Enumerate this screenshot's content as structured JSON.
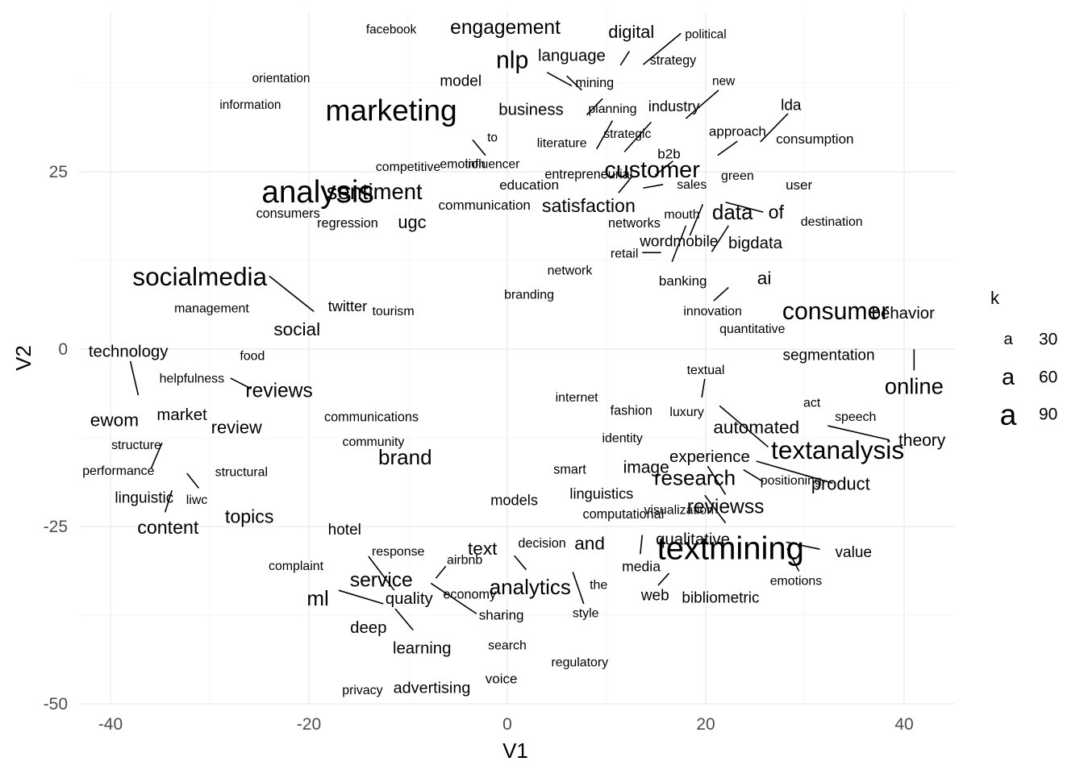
{
  "chart_data": {
    "type": "scatter",
    "title": "",
    "xlabel": "V1",
    "ylabel": "V2",
    "xlim": [
      -43.5,
      45.5
    ],
    "ylim": [
      -50,
      50
    ],
    "x_ticks": [
      -40,
      -20,
      0,
      20,
      40
    ],
    "y_ticks": [
      -50,
      -25,
      0,
      25
    ],
    "grid": true,
    "legend": {
      "title": "k",
      "position": "right",
      "key_glyph": "a",
      "entries": [
        {
          "label": "30",
          "value": 30
        },
        {
          "label": "60",
          "value": 60
        },
        {
          "label": "90",
          "value": 90
        }
      ]
    },
    "words": [
      {
        "label": "facebook",
        "x": -11.7,
        "y": 45.0,
        "k": 12
      },
      {
        "label": "engagement",
        "x": -0.2,
        "y": 45.3,
        "k": 45
      },
      {
        "label": "digital",
        "x": 12.5,
        "y": 44.7,
        "k": 35
      },
      {
        "label": "political",
        "x": 20.0,
        "y": 44.3,
        "k": 12
      },
      {
        "label": "nlp",
        "x": 0.5,
        "y": 40.7,
        "k": 65
      },
      {
        "label": "language",
        "x": 6.5,
        "y": 41.3,
        "k": 30
      },
      {
        "label": "strategy",
        "x": 16.7,
        "y": 40.7,
        "k": 15
      },
      {
        "label": "orientation",
        "x": -22.8,
        "y": 38.1,
        "k": 12
      },
      {
        "label": "model",
        "x": -4.7,
        "y": 37.7,
        "k": 25
      },
      {
        "label": "mining",
        "x": 8.8,
        "y": 37.5,
        "k": 15
      },
      {
        "label": "new",
        "x": 21.8,
        "y": 37.7,
        "k": 12
      },
      {
        "label": "information",
        "x": -25.9,
        "y": 34.4,
        "k": 12
      },
      {
        "label": "marketing",
        "x": -11.7,
        "y": 33.7,
        "k": 90
      },
      {
        "label": "business",
        "x": 2.4,
        "y": 33.7,
        "k": 30
      },
      {
        "label": "planning",
        "x": 10.6,
        "y": 33.8,
        "k": 14
      },
      {
        "label": "industry",
        "x": 16.8,
        "y": 34.2,
        "k": 22
      },
      {
        "label": "lda",
        "x": 28.6,
        "y": 34.3,
        "k": 25
      },
      {
        "label": "to",
        "x": -1.5,
        "y": 29.8,
        "k": 12
      },
      {
        "label": "strategic",
        "x": 12.1,
        "y": 30.3,
        "k": 13
      },
      {
        "label": "literature",
        "x": 5.5,
        "y": 29.0,
        "k": 14
      },
      {
        "label": "approach",
        "x": 23.2,
        "y": 30.7,
        "k": 18
      },
      {
        "label": "consumption",
        "x": 31.0,
        "y": 29.6,
        "k": 18
      },
      {
        "label": "b2b",
        "x": 16.3,
        "y": 27.5,
        "k": 18
      },
      {
        "label": "competitive",
        "x": -10.0,
        "y": 25.6,
        "k": 14
      },
      {
        "label": "emotion",
        "x": -4.5,
        "y": 26.0,
        "k": 14
      },
      {
        "label": "influencer",
        "x": -1.5,
        "y": 26.0,
        "k": 13
      },
      {
        "label": "customer",
        "x": 14.6,
        "y": 25.2,
        "k": 60
      },
      {
        "label": "entrepreneurial",
        "x": 8.2,
        "y": 24.6,
        "k": 15
      },
      {
        "label": "green",
        "x": 23.2,
        "y": 24.4,
        "k": 14
      },
      {
        "label": "education",
        "x": 2.2,
        "y": 23.1,
        "k": 18
      },
      {
        "label": "sales",
        "x": 18.6,
        "y": 23.1,
        "k": 14
      },
      {
        "label": "user",
        "x": 29.4,
        "y": 23.1,
        "k": 18
      },
      {
        "label": "analysis",
        "x": -19.1,
        "y": 22.1,
        "k": 95
      },
      {
        "label": "sentiment",
        "x": -13.4,
        "y": 22.2,
        "k": 55
      },
      {
        "label": "communication",
        "x": -2.3,
        "y": 20.3,
        "k": 18
      },
      {
        "label": "satisfaction",
        "x": 8.2,
        "y": 20.2,
        "k": 40
      },
      {
        "label": "data",
        "x": 22.7,
        "y": 19.3,
        "k": 50
      },
      {
        "label": "of",
        "x": 27.1,
        "y": 19.3,
        "k": 40
      },
      {
        "label": "consumers",
        "x": -22.1,
        "y": 19.1,
        "k": 15
      },
      {
        "label": "mouth",
        "x": 17.6,
        "y": 18.9,
        "k": 14
      },
      {
        "label": "regression",
        "x": -16.1,
        "y": 17.7,
        "k": 15
      },
      {
        "label": "ugc",
        "x": -9.6,
        "y": 17.9,
        "k": 35
      },
      {
        "label": "networks",
        "x": 12.8,
        "y": 17.7,
        "k": 15
      },
      {
        "label": "destination",
        "x": 32.7,
        "y": 17.9,
        "k": 14
      },
      {
        "label": "wordmobile",
        "x": 17.3,
        "y": 15.1,
        "k": 25
      },
      {
        "label": "bigdata",
        "x": 25.0,
        "y": 14.9,
        "k": 30
      },
      {
        "label": "retail",
        "x": 11.8,
        "y": 13.4,
        "k": 14
      },
      {
        "label": "network",
        "x": 6.3,
        "y": 11.0,
        "k": 14
      },
      {
        "label": "socialmedia",
        "x": -31.0,
        "y": 10.2,
        "k": 70
      },
      {
        "label": "banking",
        "x": 17.7,
        "y": 9.6,
        "k": 18
      },
      {
        "label": "ai",
        "x": 25.9,
        "y": 10.0,
        "k": 38
      },
      {
        "label": "branding",
        "x": 2.2,
        "y": 7.6,
        "k": 14
      },
      {
        "label": "management",
        "x": -29.8,
        "y": 5.7,
        "k": 14
      },
      {
        "label": "twitter",
        "x": -16.1,
        "y": 6.0,
        "k": 22
      },
      {
        "label": "tourism",
        "x": -11.5,
        "y": 5.3,
        "k": 14
      },
      {
        "label": "innovation",
        "x": 20.7,
        "y": 5.3,
        "k": 14
      },
      {
        "label": "consumer",
        "x": 33.1,
        "y": 5.3,
        "k": 65
      },
      {
        "label": "behavior",
        "x": 39.9,
        "y": 5.0,
        "k": 30
      },
      {
        "label": "social",
        "x": -21.2,
        "y": 2.8,
        "k": 38
      },
      {
        "label": "quantitative",
        "x": 24.7,
        "y": 2.8,
        "k": 14
      },
      {
        "label": "technology",
        "x": -38.2,
        "y": -0.4,
        "k": 30
      },
      {
        "label": "food",
        "x": -25.7,
        "y": -1.0,
        "k": 14
      },
      {
        "label": "segmentation",
        "x": 32.4,
        "y": -0.9,
        "k": 25
      },
      {
        "label": "textual",
        "x": 20.0,
        "y": -3.0,
        "k": 14
      },
      {
        "label": "helpfulness",
        "x": -31.8,
        "y": -4.2,
        "k": 14
      },
      {
        "label": "reviews",
        "x": -23.0,
        "y": -5.9,
        "k": 45
      },
      {
        "label": "online",
        "x": 41.0,
        "y": -5.2,
        "k": 55
      },
      {
        "label": "internet",
        "x": 7.0,
        "y": -6.9,
        "k": 14
      },
      {
        "label": "act",
        "x": 30.7,
        "y": -7.6,
        "k": 14
      },
      {
        "label": "fashion",
        "x": 12.5,
        "y": -8.7,
        "k": 15
      },
      {
        "label": "luxury",
        "x": 18.1,
        "y": -8.9,
        "k": 14
      },
      {
        "label": "speech",
        "x": 35.1,
        "y": -9.6,
        "k": 14
      },
      {
        "label": "ewom",
        "x": -39.6,
        "y": -10.0,
        "k": 38
      },
      {
        "label": "market",
        "x": -32.8,
        "y": -9.3,
        "k": 30
      },
      {
        "label": "communications",
        "x": -13.7,
        "y": -9.6,
        "k": 15
      },
      {
        "label": "review",
        "x": -27.3,
        "y": -11.0,
        "k": 35
      },
      {
        "label": "automated",
        "x": 25.1,
        "y": -11.0,
        "k": 38
      },
      {
        "label": "textanalysis",
        "x": 33.3,
        "y": -14.2,
        "k": 70
      },
      {
        "label": "community",
        "x": -13.5,
        "y": -13.1,
        "k": 14
      },
      {
        "label": "identity",
        "x": 11.6,
        "y": -12.6,
        "k": 14
      },
      {
        "label": "theory",
        "x": 41.8,
        "y": -12.9,
        "k": 32
      },
      {
        "label": "structure",
        "x": -37.4,
        "y": -13.6,
        "k": 14
      },
      {
        "label": "brand",
        "x": -10.3,
        "y": -15.2,
        "k": 50
      },
      {
        "label": "experience",
        "x": 20.4,
        "y": -15.2,
        "k": 30
      },
      {
        "label": "image",
        "x": 14.0,
        "y": -16.7,
        "k": 32
      },
      {
        "label": "smart",
        "x": 6.3,
        "y": -17.0,
        "k": 15
      },
      {
        "label": "performance",
        "x": -39.2,
        "y": -17.2,
        "k": 14
      },
      {
        "label": "structural",
        "x": -26.8,
        "y": -17.4,
        "k": 14
      },
      {
        "label": "research",
        "x": 18.9,
        "y": -18.1,
        "k": 50
      },
      {
        "label": "positioning",
        "x": 28.6,
        "y": -18.6,
        "k": 14
      },
      {
        "label": "product",
        "x": 33.6,
        "y": -19.0,
        "k": 35
      },
      {
        "label": "linguistic",
        "x": -36.6,
        "y": -21.0,
        "k": 25
      },
      {
        "label": "liwc",
        "x": -31.3,
        "y": -21.3,
        "k": 14
      },
      {
        "label": "linguistics",
        "x": 9.5,
        "y": -20.4,
        "k": 22
      },
      {
        "label": "models",
        "x": 0.7,
        "y": -21.3,
        "k": 22
      },
      {
        "label": "reviewss",
        "x": 22.0,
        "y": -22.3,
        "k": 45
      },
      {
        "label": "topics",
        "x": -26.0,
        "y": -23.6,
        "k": 40
      },
      {
        "label": "computational",
        "x": 11.7,
        "y": -23.3,
        "k": 15
      },
      {
        "label": "visualization",
        "x": 17.3,
        "y": -22.7,
        "k": 14
      },
      {
        "label": "content",
        "x": -34.2,
        "y": -25.1,
        "k": 40
      },
      {
        "label": "hotel",
        "x": -16.4,
        "y": -25.5,
        "k": 25
      },
      {
        "label": "qualitative",
        "x": 18.7,
        "y": -26.9,
        "k": 30
      },
      {
        "label": "textmining",
        "x": 22.5,
        "y": -28.1,
        "k": 100
      },
      {
        "label": "and",
        "x": 8.3,
        "y": -27.4,
        "k": 38
      },
      {
        "label": "text",
        "x": -2.5,
        "y": -28.1,
        "k": 38
      },
      {
        "label": "decision",
        "x": 3.5,
        "y": -27.4,
        "k": 15
      },
      {
        "label": "response",
        "x": -11.0,
        "y": -28.6,
        "k": 14
      },
      {
        "label": "value",
        "x": 34.9,
        "y": -28.7,
        "k": 25
      },
      {
        "label": "airbnb",
        "x": -4.3,
        "y": -29.8,
        "k": 14
      },
      {
        "label": "complaint",
        "x": -21.3,
        "y": -30.6,
        "k": 14
      },
      {
        "label": "media",
        "x": 13.5,
        "y": -30.6,
        "k": 20
      },
      {
        "label": "service",
        "x": -12.7,
        "y": -32.6,
        "k": 45
      },
      {
        "label": "analytics",
        "x": 2.3,
        "y": -33.5,
        "k": 50
      },
      {
        "label": "emotions",
        "x": 29.1,
        "y": -32.7,
        "k": 14
      },
      {
        "label": "the",
        "x": 9.2,
        "y": -33.3,
        "k": 14
      },
      {
        "label": "economy",
        "x": -3.8,
        "y": -34.6,
        "k": 15
      },
      {
        "label": "ml",
        "x": -19.1,
        "y": -35.1,
        "k": 50
      },
      {
        "label": "quality",
        "x": -9.9,
        "y": -35.2,
        "k": 30
      },
      {
        "label": "web",
        "x": 14.9,
        "y": -34.8,
        "k": 25
      },
      {
        "label": "bibliometric",
        "x": 21.5,
        "y": -35.1,
        "k": 25
      },
      {
        "label": "sharing",
        "x": -0.6,
        "y": -37.5,
        "k": 18
      },
      {
        "label": "style",
        "x": 7.9,
        "y": -37.3,
        "k": 14
      },
      {
        "label": "deep",
        "x": -14.0,
        "y": -39.3,
        "k": 30
      },
      {
        "label": "learning",
        "x": -8.6,
        "y": -42.2,
        "k": 30
      },
      {
        "label": "search",
        "x": 0.0,
        "y": -41.8,
        "k": 14
      },
      {
        "label": "regulatory",
        "x": 7.3,
        "y": -44.2,
        "k": 14
      },
      {
        "label": "voice",
        "x": -0.6,
        "y": -46.5,
        "k": 18
      },
      {
        "label": "advertising",
        "x": -7.6,
        "y": -47.8,
        "k": 28
      },
      {
        "label": "privacy",
        "x": -14.6,
        "y": -48.1,
        "k": 14
      }
    ],
    "segments": [
      [
        4.0,
        39.0,
        6.5,
        37.1
      ],
      [
        6.0,
        38.5,
        7.5,
        36.5
      ],
      [
        12.3,
        42.0,
        11.4,
        40.0
      ],
      [
        17.5,
        44.5,
        13.7,
        40.1
      ],
      [
        9.6,
        35.3,
        8.0,
        33.0
      ],
      [
        14.5,
        32.0,
        11.8,
        27.8
      ],
      [
        10.6,
        32.2,
        9.0,
        28.2
      ],
      [
        21.3,
        36.5,
        18.0,
        32.5
      ],
      [
        28.3,
        33.2,
        25.5,
        29.2
      ],
      [
        23.2,
        29.3,
        21.2,
        27.3
      ],
      [
        -3.5,
        29.5,
        -2.2,
        27.3
      ],
      [
        16.7,
        26.5,
        14.9,
        24.5
      ],
      [
        12.5,
        24.2,
        11.2,
        22.0
      ],
      [
        15.7,
        23.2,
        13.7,
        22.7
      ],
      [
        22.0,
        20.7,
        25.8,
        19.3
      ],
      [
        19.7,
        20.4,
        18.4,
        16.0
      ],
      [
        18.0,
        17.4,
        16.6,
        12.3
      ],
      [
        22.3,
        17.4,
        20.6,
        13.7
      ],
      [
        13.6,
        13.6,
        15.5,
        13.6
      ],
      [
        22.3,
        8.7,
        20.8,
        6.8
      ],
      [
        -24.0,
        10.3,
        -19.5,
        5.3
      ],
      [
        -38.0,
        -1.7,
        -37.2,
        -6.5
      ],
      [
        -27.9,
        -4.1,
        -25.8,
        -5.6
      ],
      [
        19.9,
        -4.2,
        19.6,
        -6.8
      ],
      [
        21.4,
        -8.0,
        26.3,
        -13.8
      ],
      [
        32.3,
        -10.8,
        38.5,
        -12.8
      ],
      [
        25.1,
        -15.8,
        32.8,
        -18.9
      ],
      [
        23.8,
        -17.0,
        25.8,
        -18.7
      ],
      [
        41.0,
        0.0,
        41.0,
        -3.0
      ],
      [
        -34.8,
        -13.2,
        -35.9,
        -16.8
      ],
      [
        -32.3,
        -17.5,
        -31.1,
        -19.6
      ],
      [
        -33.8,
        -19.9,
        -34.5,
        -23.0
      ],
      [
        20.2,
        -16.5,
        22.0,
        -20.5
      ],
      [
        19.9,
        -20.6,
        22.0,
        -24.5
      ],
      [
        13.6,
        -26.2,
        13.4,
        -28.9
      ],
      [
        28.1,
        -27.2,
        31.5,
        -28.2
      ],
      [
        28.2,
        -28.1,
        29.4,
        -31.3
      ],
      [
        16.3,
        -31.6,
        15.2,
        -33.3
      ],
      [
        -14.0,
        -29.2,
        -11.4,
        -34.0
      ],
      [
        -17.0,
        -34.0,
        -12.5,
        -35.9
      ],
      [
        -11.3,
        -36.6,
        -9.5,
        -39.6
      ],
      [
        -7.7,
        -33.0,
        -3.1,
        -37.3
      ],
      [
        -6.2,
        -30.6,
        -7.2,
        -32.3
      ],
      [
        0.7,
        -29.1,
        1.9,
        -31.1
      ],
      [
        6.6,
        -31.4,
        7.7,
        -35.9
      ]
    ]
  }
}
